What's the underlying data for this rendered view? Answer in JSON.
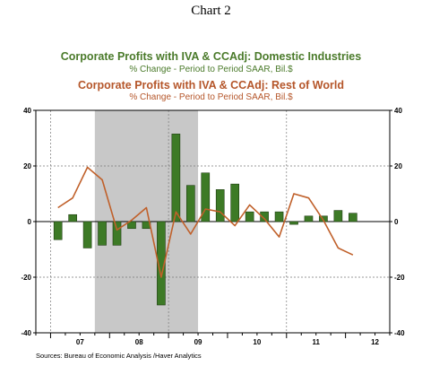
{
  "chart_label": "Chart 2",
  "sources": "Sources:  Bureau of Economic Analysis /Haver Analytics",
  "colors": {
    "domestic": "#4a7a2a",
    "domestic_bar_fill": "#3d7a26",
    "row": "#c0602a",
    "recession": "#c8c8c8"
  },
  "chart_data": {
    "type": "bar+line",
    "title_1": "Corporate Profits with IVA & CCAdj: Domestic Industries",
    "subtitle_1": "% Change - Period to Period    SAAR, Bil.$",
    "title_2": "Corporate Profits with IVA & CCAdj: Rest of World",
    "subtitle_2": "% Change - Period to Period    SAAR, Bil.$",
    "ylim": [
      -40,
      40
    ],
    "yticks": [
      40,
      20,
      0,
      -20,
      -40
    ],
    "xlabels": [
      "07",
      "08",
      "09",
      "10",
      "11",
      "12"
    ],
    "x_start": "2006Q4",
    "x_end": "2012Q4",
    "recession": [
      "2007Q4",
      "2009Q2"
    ],
    "series": [
      {
        "type": "bar",
        "x": [
          "2007Q1",
          "2007Q2",
          "2007Q3",
          "2007Q4",
          "2008Q1",
          "2008Q2",
          "2008Q3",
          "2008Q4",
          "2009Q1",
          "2009Q2",
          "2009Q3",
          "2009Q4",
          "2010Q1",
          "2010Q2",
          "2010Q3",
          "2010Q4",
          "2011Q1",
          "2011Q2",
          "2011Q3",
          "2011Q4",
          "2012Q1",
          "2012Q2"
        ],
        "values": [
          -6.5,
          2.5,
          -9.5,
          -8.5,
          -8.5,
          -2.5,
          -2.5,
          -30,
          31.5,
          13,
          17.5,
          11.5,
          13.5,
          3.5,
          3.5,
          3.5,
          -1,
          2,
          2,
          4,
          3,
          null
        ]
      },
      {
        "type": "line",
        "x": [
          "2007Q1",
          "2007Q2",
          "2007Q3",
          "2007Q4",
          "2008Q1",
          "2008Q2",
          "2008Q3",
          "2008Q4",
          "2009Q1",
          "2009Q2",
          "2009Q3",
          "2009Q4",
          "2010Q1",
          "2010Q2",
          "2010Q3",
          "2010Q4",
          "2011Q1",
          "2011Q2",
          "2011Q3",
          "2011Q4",
          "2012Q1",
          "2012Q2"
        ],
        "values": [
          5,
          8.5,
          19.5,
          15,
          -3,
          0.5,
          5,
          -20,
          3.5,
          -4.5,
          4.5,
          3.5,
          -1.5,
          6,
          1,
          -5.5,
          10,
          8.5,
          0.5,
          -9.5,
          -12,
          null
        ]
      }
    ]
  }
}
